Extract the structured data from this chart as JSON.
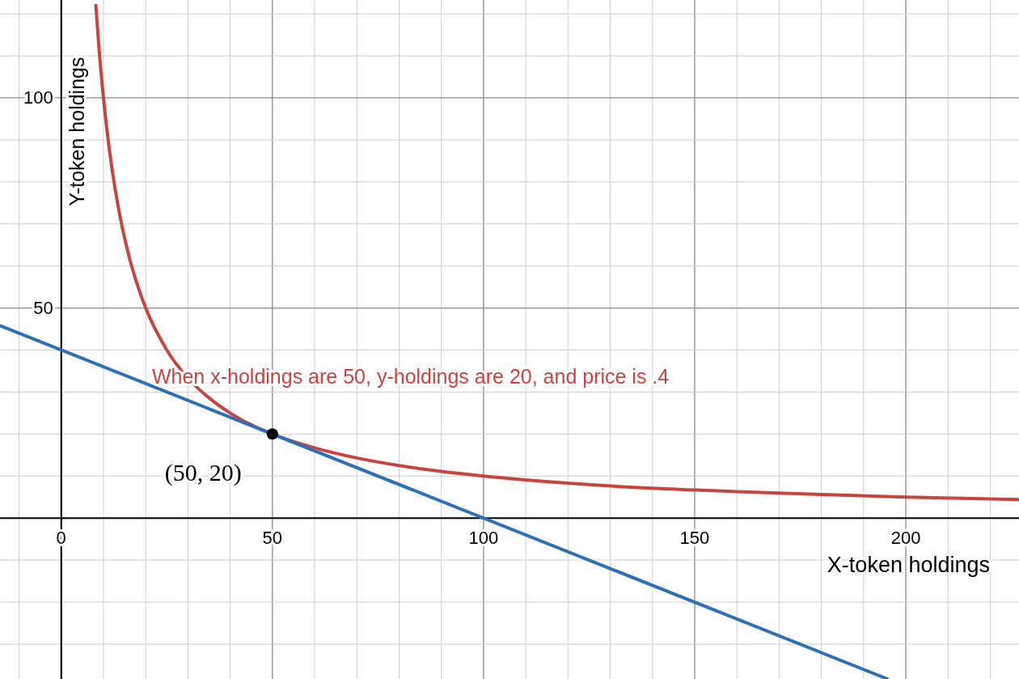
{
  "chart_data": {
    "type": "line",
    "xlabel": "X-token holdings",
    "ylabel": "Y-token holdings",
    "xlim": [
      -14.5,
      226.8
    ],
    "ylim": [
      -38.3,
      123.3
    ],
    "xticks": [
      {
        "value": -10,
        "label": null
      },
      {
        "value": 0,
        "label": "0"
      },
      {
        "value": 10,
        "label": null
      },
      {
        "value": 20,
        "label": null
      },
      {
        "value": 30,
        "label": null
      },
      {
        "value": 40,
        "label": null
      },
      50,
      {
        "value": 60,
        "label": null
      },
      {
        "value": 70,
        "label": null
      },
      {
        "value": 80,
        "label": null
      },
      {
        "value": 90,
        "label": null
      },
      100,
      {
        "value": 110,
        "label": null
      },
      {
        "value": 120,
        "label": null
      },
      {
        "value": 130,
        "label": null
      },
      {
        "value": 140,
        "label": null
      },
      150,
      {
        "value": 160,
        "label": null
      },
      {
        "value": 170,
        "label": null
      },
      {
        "value": 180,
        "label": null
      },
      {
        "value": 190,
        "label": null
      },
      200,
      {
        "value": 210,
        "label": null
      },
      {
        "value": 220,
        "label": null
      }
    ],
    "yticks": [
      {
        "value": -30,
        "label": null
      },
      {
        "value": -20,
        "label": null
      },
      {
        "value": -10,
        "label": null
      },
      {
        "value": 0,
        "label": null
      },
      {
        "value": 10,
        "label": null
      },
      {
        "value": 20,
        "label": null
      },
      {
        "value": 30,
        "label": null
      },
      {
        "value": 40,
        "label": null
      },
      50,
      {
        "value": 60,
        "label": null
      },
      {
        "value": 70,
        "label": null
      },
      {
        "value": 80,
        "label": null
      },
      {
        "value": 90,
        "label": null
      },
      100,
      {
        "value": 110,
        "label": null
      },
      {
        "value": 120,
        "label": null
      }
    ],
    "grid": true,
    "series": [
      {
        "color": "#c74440",
        "marker": "none",
        "x": [
          8.2,
          9,
          10,
          11,
          12,
          14,
          16,
          18,
          20,
          25,
          30,
          35,
          40,
          45,
          50,
          60,
          70,
          80,
          90,
          100,
          120,
          140,
          160,
          180,
          200,
          226.8
        ],
        "values": [
          122,
          111.1,
          100,
          90.9,
          83.3,
          71.4,
          62.5,
          55.6,
          50,
          40,
          33.3,
          28.6,
          25,
          22.2,
          20,
          16.7,
          14.3,
          12.5,
          11.1,
          10,
          8.3,
          7.1,
          6.3,
          5.6,
          5,
          4.4
        ]
      },
      {
        "color": "#2d70b3",
        "marker": "none",
        "x": [
          -14.5,
          195.7
        ],
        "values": [
          45.8,
          -38.3
        ]
      },
      {
        "type": "scatter",
        "color": "#000000",
        "marker": "circle",
        "x": [
          50
        ],
        "values": [
          20
        ]
      }
    ],
    "annotations": [
      {
        "text": "(50, 20)",
        "x": 50,
        "y": 20
      },
      "When x-holdings are 50, y-holdings are 20, and price is .4"
    ]
  }
}
